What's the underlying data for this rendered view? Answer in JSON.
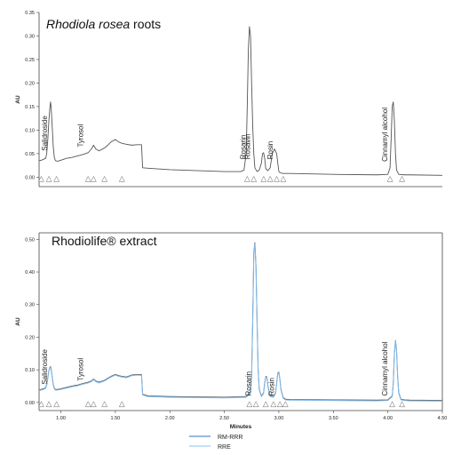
{
  "chart_data": [
    {
      "type": "line",
      "title": "Rhodiola rosea roots",
      "title_italic_part": "Rhodiola rosea",
      "title_rest": " roots",
      "xlabel": "",
      "ylabel": "AU",
      "xlim": [
        0.8,
        4.5
      ],
      "ylim": [
        -0.02,
        0.35
      ],
      "yticks": [
        0.0,
        0.05,
        0.1,
        0.15,
        0.2,
        0.25,
        0.3,
        0.35
      ],
      "ytick_labels": [
        "0.00",
        "0.05",
        "0.10",
        "0.15",
        "0.20",
        "0.25",
        "0.30",
        "0.35"
      ],
      "axes_box": "open-right",
      "series": [
        {
          "color": "#555555",
          "x": [
            0.8,
            0.82,
            0.84,
            0.86,
            0.87,
            0.88,
            0.89,
            0.9,
            0.905,
            0.91,
            0.92,
            0.93,
            0.94,
            0.95,
            0.97,
            1.0,
            1.05,
            1.1,
            1.15,
            1.2,
            1.25,
            1.28,
            1.3,
            1.32,
            1.35,
            1.4,
            1.43,
            1.46,
            1.5,
            1.53,
            1.56,
            1.6,
            1.65,
            1.7,
            1.74,
            1.75,
            1.8,
            2.0,
            2.5,
            2.65,
            2.68,
            2.7,
            2.71,
            2.72,
            2.73,
            2.74,
            2.75,
            2.76,
            2.77,
            2.78,
            2.8,
            2.82,
            2.84,
            2.85,
            2.86,
            2.87,
            2.88,
            2.9,
            2.92,
            2.94,
            2.96,
            2.98,
            2.99,
            3.0,
            3.01,
            3.02,
            3.04,
            3.06,
            3.1,
            3.5,
            3.9,
            4.0,
            4.02,
            4.03,
            4.04,
            4.05,
            4.06,
            4.07,
            4.08,
            4.1,
            4.15,
            4.2,
            4.5
          ],
          "y": [
            0.035,
            0.036,
            0.038,
            0.04,
            0.05,
            0.08,
            0.12,
            0.15,
            0.16,
            0.15,
            0.11,
            0.065,
            0.042,
            0.035,
            0.034,
            0.036,
            0.04,
            0.042,
            0.045,
            0.048,
            0.052,
            0.06,
            0.068,
            0.06,
            0.056,
            0.062,
            0.068,
            0.075,
            0.08,
            0.075,
            0.072,
            0.07,
            0.068,
            0.069,
            0.069,
            0.02,
            0.019,
            0.016,
            0.012,
            0.012,
            0.015,
            0.05,
            0.15,
            0.27,
            0.32,
            0.3,
            0.2,
            0.11,
            0.05,
            0.02,
            0.012,
            0.015,
            0.03,
            0.05,
            0.052,
            0.04,
            0.018,
            0.014,
            0.02,
            0.05,
            0.06,
            0.05,
            0.03,
            0.012,
            0.01,
            0.009,
            0.008,
            0.008,
            0.008,
            0.006,
            0.005,
            0.006,
            0.02,
            0.08,
            0.15,
            0.16,
            0.12,
            0.05,
            0.015,
            0.006,
            0.005,
            0.005,
            0.004
          ]
        }
      ],
      "peak_labels": [
        {
          "text": "Salidroside",
          "x": 0.875,
          "y": 0.056
        },
        {
          "text": "Tyrosol",
          "x": 1.205,
          "y": 0.064
        },
        {
          "text": "Rosarin",
          "x": 2.695,
          "y": 0.038
        },
        {
          "text": "Rosavin",
          "x": 2.735,
          "y": 0.038
        },
        {
          "text": "Rosin",
          "x": 2.945,
          "y": 0.038
        },
        {
          "text": "Cinnamyl alcohol",
          "x": 3.995,
          "y": 0.033
        }
      ]
    },
    {
      "type": "line",
      "title": "Rhodiolife® extract",
      "xlabel": "Minutes",
      "ylabel": "AU",
      "xlim": [
        0.8,
        4.5
      ],
      "ylim": [
        -0.025,
        0.52
      ],
      "yticks": [
        0.0,
        0.1,
        0.2,
        0.3,
        0.4,
        0.5
      ],
      "ytick_labels": [
        "0.00",
        "0.10",
        "0.20",
        "0.30",
        "0.40",
        "0.50"
      ],
      "xticks": [
        1.0,
        1.5,
        2.0,
        2.5,
        3.0,
        3.5,
        4.0,
        4.5
      ],
      "xtick_labels": [
        "1.00",
        "1.50",
        "2.00",
        "2.50",
        "3.00",
        "3.50",
        "4.00",
        "4.50"
      ],
      "axes_box": "closed",
      "series": [
        {
          "name": "RM-RRR",
          "color": "#555555",
          "x": [
            0.8,
            0.82,
            0.84,
            0.86,
            0.87,
            0.88,
            0.89,
            0.9,
            0.905,
            0.91,
            0.92,
            0.93,
            0.94,
            0.95,
            0.97,
            1.0,
            1.05,
            1.1,
            1.15,
            1.2,
            1.25,
            1.28,
            1.3,
            1.32,
            1.35,
            1.4,
            1.43,
            1.46,
            1.5,
            1.53,
            1.56,
            1.6,
            1.65,
            1.7,
            1.74,
            1.75,
            1.8,
            2.0,
            2.5,
            2.7,
            2.74,
            2.75,
            2.76,
            2.77,
            2.78,
            2.79,
            2.8,
            2.81,
            2.82,
            2.84,
            2.86,
            2.87,
            2.88,
            2.89,
            2.9,
            2.92,
            2.95,
            2.97,
            2.98,
            2.99,
            3.0,
            3.01,
            3.02,
            3.04,
            3.06,
            3.1,
            3.5,
            3.9,
            4.0,
            4.04,
            4.05,
            4.06,
            4.07,
            4.08,
            4.09,
            4.1,
            4.12,
            4.15,
            4.2,
            4.5
          ],
          "y": [
            0.038,
            0.04,
            0.042,
            0.045,
            0.055,
            0.075,
            0.098,
            0.108,
            0.11,
            0.105,
            0.08,
            0.055,
            0.044,
            0.04,
            0.04,
            0.042,
            0.046,
            0.05,
            0.053,
            0.058,
            0.062,
            0.066,
            0.072,
            0.066,
            0.062,
            0.068,
            0.074,
            0.08,
            0.086,
            0.082,
            0.08,
            0.078,
            0.084,
            0.086,
            0.085,
            0.025,
            0.02,
            0.018,
            0.016,
            0.018,
            0.03,
            0.08,
            0.25,
            0.46,
            0.49,
            0.42,
            0.25,
            0.1,
            0.04,
            0.02,
            0.03,
            0.06,
            0.08,
            0.078,
            0.05,
            0.02,
            0.018,
            0.03,
            0.06,
            0.09,
            0.093,
            0.07,
            0.04,
            0.015,
            0.01,
            0.009,
            0.008,
            0.007,
            0.008,
            0.02,
            0.06,
            0.15,
            0.19,
            0.16,
            0.08,
            0.03,
            0.01,
            0.008,
            0.007,
            0.006
          ]
        },
        {
          "name": "RRE",
          "color": "#7fb7e6",
          "x": [
            0.8,
            0.82,
            0.84,
            0.86,
            0.87,
            0.88,
            0.89,
            0.9,
            0.905,
            0.91,
            0.92,
            0.93,
            0.94,
            0.95,
            0.97,
            1.0,
            1.05,
            1.1,
            1.15,
            1.2,
            1.25,
            1.28,
            1.3,
            1.32,
            1.35,
            1.4,
            1.43,
            1.46,
            1.5,
            1.53,
            1.56,
            1.6,
            1.65,
            1.7,
            1.74,
            1.75,
            1.8,
            2.0,
            2.5,
            2.7,
            2.74,
            2.75,
            2.76,
            2.77,
            2.78,
            2.79,
            2.8,
            2.81,
            2.82,
            2.84,
            2.86,
            2.87,
            2.88,
            2.89,
            2.9,
            2.92,
            2.95,
            2.97,
            2.98,
            2.99,
            3.0,
            3.01,
            3.02,
            3.04,
            3.06,
            3.1,
            3.5,
            3.9,
            4.0,
            4.04,
            4.05,
            4.06,
            4.07,
            4.08,
            4.09,
            4.1,
            4.12,
            4.15,
            4.2,
            4.5
          ],
          "y": [
            0.036,
            0.038,
            0.04,
            0.043,
            0.053,
            0.073,
            0.096,
            0.106,
            0.108,
            0.103,
            0.078,
            0.053,
            0.042,
            0.038,
            0.038,
            0.04,
            0.044,
            0.048,
            0.051,
            0.056,
            0.06,
            0.064,
            0.07,
            0.064,
            0.06,
            0.066,
            0.072,
            0.078,
            0.084,
            0.08,
            0.078,
            0.076,
            0.082,
            0.084,
            0.083,
            0.023,
            0.018,
            0.016,
            0.014,
            0.016,
            0.028,
            0.078,
            0.248,
            0.455,
            0.485,
            0.415,
            0.248,
            0.098,
            0.038,
            0.018,
            0.028,
            0.058,
            0.078,
            0.076,
            0.048,
            0.018,
            0.016,
            0.028,
            0.058,
            0.088,
            0.091,
            0.068,
            0.038,
            0.013,
            0.008,
            0.007,
            0.006,
            0.005,
            0.006,
            0.018,
            0.058,
            0.148,
            0.188,
            0.158,
            0.078,
            0.028,
            0.008,
            0.006,
            0.005,
            0.004
          ]
        }
      ],
      "peak_labels": [
        {
          "text": "Salidroside",
          "x": 0.875,
          "y": 0.055
        },
        {
          "text": "Tyrosol",
          "x": 1.205,
          "y": 0.066
        },
        {
          "text": "Rosarin",
          "x": 2.745,
          "y": 0.02
        },
        {
          "text": "Rosin",
          "x": 2.955,
          "y": 0.02
        },
        {
          "text": "Cinnamyl alcohol",
          "x": 3.995,
          "y": 0.02
        }
      ],
      "legend": {
        "placement": "bottom-center",
        "entries": [
          {
            "label": "RM-RRR",
            "color": "#5b8ec7"
          },
          {
            "label": "RRE",
            "color": "#9fcdf0"
          }
        ]
      }
    }
  ]
}
